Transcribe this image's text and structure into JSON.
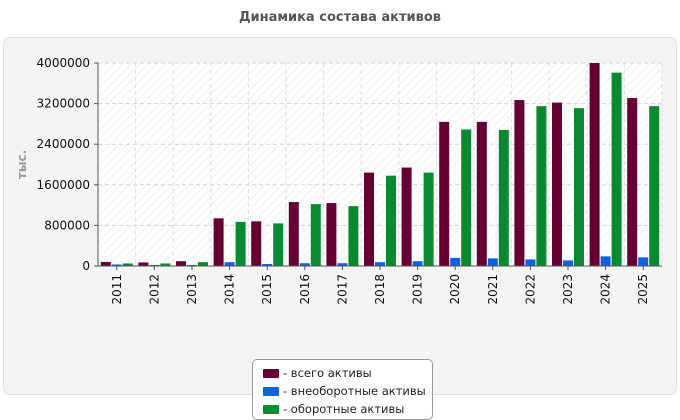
{
  "title": "Динамика состава активов",
  "chart_data": {
    "type": "bar",
    "title": "Динамика состава активов",
    "ylabel": "тыс.",
    "xlabel": "",
    "ylim": [
      0,
      4000000
    ],
    "yticks": [
      0,
      800000,
      1600000,
      2400000,
      3200000,
      4000000
    ],
    "grid": true,
    "legend_position": "bottom-center",
    "categories": [
      "2011",
      "2012",
      "2013",
      "2014",
      "2015",
      "2016",
      "2017",
      "2018",
      "2019",
      "2020",
      "2021",
      "2022",
      "2023",
      "2024",
      "2025"
    ],
    "series": [
      {
        "name": "- всего активы",
        "color": "#660033",
        "values": [
          80000,
          70000,
          95000,
          940000,
          880000,
          1260000,
          1240000,
          1840000,
          1940000,
          2840000,
          2840000,
          3270000,
          3220000,
          4000000,
          3310000
        ]
      },
      {
        "name": "- внеоборотные активы",
        "color": "#1060e0",
        "values": [
          30000,
          20000,
          20000,
          75000,
          40000,
          55000,
          55000,
          75000,
          95000,
          160000,
          150000,
          130000,
          110000,
          190000,
          170000
        ]
      },
      {
        "name": "- оборотные активы",
        "color": "#0a8a30",
        "values": [
          50000,
          50000,
          75000,
          870000,
          840000,
          1220000,
          1180000,
          1780000,
          1840000,
          2690000,
          2680000,
          3150000,
          3110000,
          3810000,
          3150000
        ]
      }
    ]
  }
}
